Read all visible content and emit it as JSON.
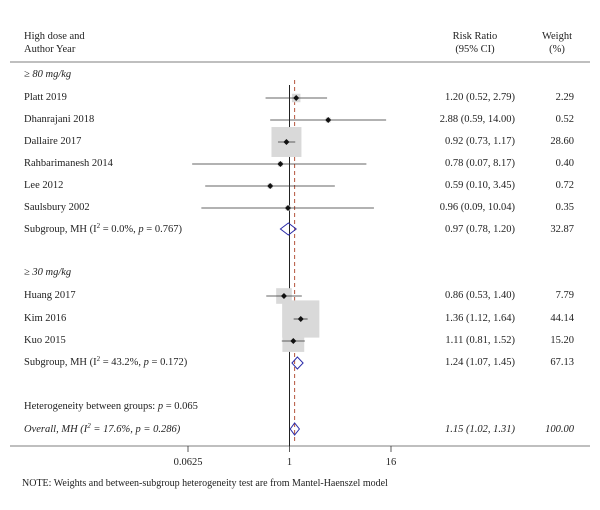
{
  "headers": {
    "study_line1": "High dose and",
    "study_line2": "Author Year",
    "rr_line1": "Risk Ratio",
    "rr_line2": "(95% CI)",
    "weight_line1": "Weight",
    "weight_line2": "(%)"
  },
  "groups": [
    {
      "label": "≥ 80 mg/kg",
      "subtotal": {
        "prefix": "Subgroup, MH (I",
        "i2": "2",
        "stats": " = 0.0%, ",
        "p_label": "p",
        "p_value": " = 0.767)",
        "ci": "0.97 (0.78, 1.20)",
        "weight": "32.87"
      }
    },
    {
      "label": "≥ 30 mg/kg",
      "subtotal": {
        "prefix": "Subgroup, MH (I",
        "i2": "2",
        "stats": " = 43.2%, ",
        "p_label": "p",
        "p_value": " = 0.172)",
        "ci": "1.24 (1.07, 1.45)",
        "weight": "67.13"
      }
    }
  ],
  "heterogeneity": {
    "prefix": "Heterogeneity between groups: ",
    "p_label": "p",
    "p_value": " = 0.065"
  },
  "overall": {
    "prefix": "Overall, MH (I",
    "i2": "2",
    "stats": " = 17.6%, ",
    "p_label": "p",
    "p_value": " = 0.286)",
    "ci": "1.15 (1.02, 1.31)",
    "weight": "100.00"
  },
  "note": "NOTE: Weights and between-subgroup heterogeneity test are from Mantel-Haenszel model",
  "colors": {
    "marker": "#111111",
    "weight_box": "#d9d9d9",
    "diamond": "#2b2ba8",
    "ref_line": "#222222",
    "overall_line": "#b5543c"
  },
  "chart_data": {
    "type": "forest",
    "x_scale": "log2",
    "xlim": [
      0.0625,
      16
    ],
    "xticks": [
      0.0625,
      1,
      16
    ],
    "xtick_labels": [
      "0.0625",
      "1",
      "16"
    ],
    "reference_line": 1,
    "overall_effect_line": 1.15,
    "studies": [
      {
        "name": "Platt 2019",
        "group": 0,
        "rr": 1.2,
        "lo": 0.52,
        "hi": 2.79,
        "ci_text": "1.20 (0.52, 2.79)",
        "weight": 2.29,
        "weight_text": "2.29"
      },
      {
        "name": "Dhanrajani 2018",
        "group": 0,
        "rr": 2.88,
        "lo": 0.59,
        "hi": 14.0,
        "ci_text": "2.88 (0.59, 14.00)",
        "weight": 0.52,
        "weight_text": "0.52"
      },
      {
        "name": "Dallaire 2017",
        "group": 0,
        "rr": 0.92,
        "lo": 0.73,
        "hi": 1.17,
        "ci_text": "0.92 (0.73, 1.17)",
        "weight": 28.6,
        "weight_text": "28.60"
      },
      {
        "name": "Rahbarimanesh 2014",
        "group": 0,
        "rr": 0.78,
        "lo": 0.07,
        "hi": 8.17,
        "ci_text": "0.78 (0.07, 8.17)",
        "weight": 0.4,
        "weight_text": "0.40"
      },
      {
        "name": "Lee 2012",
        "group": 0,
        "rr": 0.59,
        "lo": 0.1,
        "hi": 3.45,
        "ci_text": "0.59 (0.10, 3.45)",
        "weight": 0.72,
        "weight_text": "0.72"
      },
      {
        "name": "Saulsbury 2002",
        "group": 0,
        "rr": 0.96,
        "lo": 0.09,
        "hi": 10.04,
        "ci_text": "0.96 (0.09, 10.04)",
        "weight": 0.35,
        "weight_text": "0.35"
      },
      {
        "name": "Huang 2017",
        "group": 1,
        "rr": 0.86,
        "lo": 0.53,
        "hi": 1.4,
        "ci_text": "0.86 (0.53, 1.40)",
        "weight": 7.79,
        "weight_text": "7.79"
      },
      {
        "name": "Kim 2016",
        "group": 1,
        "rr": 1.36,
        "lo": 1.12,
        "hi": 1.64,
        "ci_text": "1.36 (1.12, 1.64)",
        "weight": 44.14,
        "weight_text": "44.14"
      },
      {
        "name": "Kuo 2015",
        "group": 1,
        "rr": 1.11,
        "lo": 0.81,
        "hi": 1.52,
        "ci_text": "1.11 (0.81, 1.52)",
        "weight": 15.2,
        "weight_text": "15.20"
      }
    ],
    "pooled": [
      {
        "name": "subgroup-80",
        "rr": 0.97,
        "lo": 0.78,
        "hi": 1.2
      },
      {
        "name": "subgroup-30",
        "rr": 1.24,
        "lo": 1.07,
        "hi": 1.45
      },
      {
        "name": "overall",
        "rr": 1.15,
        "lo": 1.02,
        "hi": 1.31
      }
    ]
  }
}
